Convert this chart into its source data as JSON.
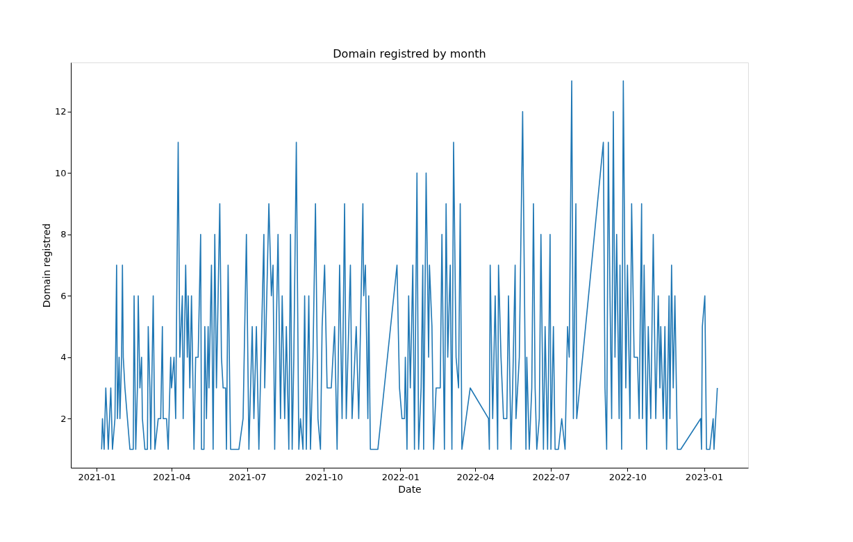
{
  "chart_data": {
    "type": "line",
    "title": "Domain registred by month",
    "xlabel": "Date",
    "ylabel": "Domain registred",
    "x": [
      "2021-01-07",
      "2021-01-08",
      "2021-01-10",
      "2021-01-12",
      "2021-01-15",
      "2021-01-18",
      "2021-01-20",
      "2021-01-23",
      "2021-01-25",
      "2021-01-26",
      "2021-01-28",
      "2021-01-29",
      "2021-01-31",
      "2021-02-01",
      "2021-02-02",
      "2021-02-04",
      "2021-02-10",
      "2021-02-14",
      "2021-02-15",
      "2021-02-17",
      "2021-02-19",
      "2021-02-20",
      "2021-02-22",
      "2021-02-24",
      "2021-02-25",
      "2021-02-28",
      "2021-03-03",
      "2021-03-04",
      "2021-03-06",
      "2021-03-07",
      "2021-03-10",
      "2021-03-12",
      "2021-03-16",
      "2021-03-19",
      "2021-03-21",
      "2021-03-22",
      "2021-03-26",
      "2021-03-28",
      "2021-03-31",
      "2021-04-01",
      "2021-04-04",
      "2021-04-06",
      "2021-04-09",
      "2021-04-11",
      "2021-04-14",
      "2021-04-15",
      "2021-04-18",
      "2021-04-20",
      "2021-04-21",
      "2021-04-23",
      "2021-04-25",
      "2021-04-28",
      "2021-04-30",
      "2021-05-03",
      "2021-05-06",
      "2021-05-07",
      "2021-05-10",
      "2021-05-11",
      "2021-05-13",
      "2021-05-15",
      "2021-05-16",
      "2021-05-19",
      "2021-05-21",
      "2021-05-23",
      "2021-05-25",
      "2021-05-27",
      "2021-05-29",
      "2021-05-31",
      "2021-06-02",
      "2021-06-05",
      "2021-06-06",
      "2021-06-08",
      "2021-06-11",
      "2021-06-15",
      "2021-06-21",
      "2021-06-26",
      "2021-06-30",
      "2021-07-03",
      "2021-07-07",
      "2021-07-09",
      "2021-07-12",
      "2021-07-15",
      "2021-07-21",
      "2021-07-22",
      "2021-07-27",
      "2021-07-30",
      "2021-08-01",
      "2021-08-03",
      "2021-08-05",
      "2021-08-07",
      "2021-08-10",
      "2021-08-12",
      "2021-08-15",
      "2021-08-17",
      "2021-08-20",
      "2021-08-22",
      "2021-08-24",
      "2021-08-26",
      "2021-08-29",
      "2021-09-01",
      "2021-09-03",
      "2021-09-06",
      "2021-09-08",
      "2021-09-10",
      "2021-09-13",
      "2021-09-15",
      "2021-09-18",
      "2021-09-21",
      "2021-09-24",
      "2021-09-27",
      "2021-09-29",
      "2021-10-02",
      "2021-10-05",
      "2021-10-10",
      "2021-10-14",
      "2021-10-17",
      "2021-10-20",
      "2021-10-23",
      "2021-10-26",
      "2021-10-28",
      "2021-11-02",
      "2021-11-04",
      "2021-11-09",
      "2021-11-12",
      "2021-11-17",
      "2021-11-18",
      "2021-11-20",
      "2021-11-23",
      "2021-11-24",
      "2021-11-26",
      "2021-12-01",
      "2021-12-05",
      "2021-12-28",
      "2021-12-31",
      "2022-01-03",
      "2022-01-06",
      "2022-01-07",
      "2022-01-09",
      "2022-01-11",
      "2022-01-13",
      "2022-01-16",
      "2022-01-18",
      "2022-01-21",
      "2022-01-23",
      "2022-01-26",
      "2022-01-28",
      "2022-01-29",
      "2022-02-01",
      "2022-02-04",
      "2022-02-05",
      "2022-02-08",
      "2022-02-10",
      "2022-02-13",
      "2022-02-18",
      "2022-02-20",
      "2022-02-23",
      "2022-02-25",
      "2022-02-27",
      "2022-03-02",
      "2022-03-04",
      "2022-03-06",
      "2022-03-09",
      "2022-03-12",
      "2022-03-14",
      "2022-03-16",
      "2022-03-26",
      "2022-04-17",
      "2022-04-18",
      "2022-04-19",
      "2022-04-22",
      "2022-04-25",
      "2022-04-28",
      "2022-04-29",
      "2022-05-02",
      "2022-05-05",
      "2022-05-09",
      "2022-05-11",
      "2022-05-14",
      "2022-05-16",
      "2022-05-19",
      "2022-05-20",
      "2022-05-24",
      "2022-05-28",
      "2022-05-31",
      "2022-06-01",
      "2022-06-02",
      "2022-06-05",
      "2022-06-08",
      "2022-06-10",
      "2022-06-12",
      "2022-06-14",
      "2022-06-17",
      "2022-06-19",
      "2022-06-22",
      "2022-06-24",
      "2022-06-27",
      "2022-06-30",
      "2022-07-01",
      "2022-07-04",
      "2022-07-06",
      "2022-07-10",
      "2022-07-14",
      "2022-07-18",
      "2022-07-21",
      "2022-07-23",
      "2022-07-26",
      "2022-07-28",
      "2022-07-31",
      "2022-08-01",
      "2022-09-02",
      "2022-09-04",
      "2022-09-06",
      "2022-09-08",
      "2022-09-10",
      "2022-09-12",
      "2022-09-14",
      "2022-09-16",
      "2022-09-18",
      "2022-09-21",
      "2022-09-22",
      "2022-09-24",
      "2022-09-26",
      "2022-09-29",
      "2022-10-01",
      "2022-10-04",
      "2022-10-06",
      "2022-10-09",
      "2022-10-13",
      "2022-10-15",
      "2022-10-18",
      "2022-10-19",
      "2022-10-21",
      "2022-10-24",
      "2022-10-26",
      "2022-10-29",
      "2022-11-01",
      "2022-11-04",
      "2022-11-07",
      "2022-11-09",
      "2022-11-10",
      "2022-11-13",
      "2022-11-15",
      "2022-11-17",
      "2022-11-20",
      "2022-11-21",
      "2022-11-23",
      "2022-11-25",
      "2022-11-27",
      "2022-11-30",
      "2022-12-04",
      "2022-12-28",
      "2022-12-29",
      "2022-12-30",
      "2023-01-02",
      "2023-01-04",
      "2023-01-08",
      "2023-01-12",
      "2023-01-13",
      "2023-01-17"
    ],
    "series": [
      {
        "color": "#1f77b4",
        "values": [
          1,
          2,
          1,
          3,
          1,
          3,
          1,
          2,
          7,
          2,
          4,
          2,
          4,
          7,
          4,
          3,
          1,
          1,
          6,
          1,
          3,
          6,
          3,
          4,
          2,
          1,
          1,
          5,
          3,
          1,
          6,
          1,
          2,
          2,
          5,
          2,
          2,
          1,
          4,
          3,
          4,
          2,
          11,
          4,
          6,
          2,
          7,
          4,
          6,
          3,
          6,
          1,
          4,
          4,
          8,
          1,
          1,
          5,
          2,
          5,
          3,
          7,
          1,
          8,
          3,
          6,
          9,
          4,
          3,
          3,
          1,
          7,
          1,
          1,
          1,
          2,
          8,
          1,
          5,
          2,
          5,
          1,
          8,
          3,
          9,
          6,
          7,
          1,
          5,
          8,
          2,
          6,
          2,
          5,
          1,
          8,
          1,
          4,
          11,
          1,
          2,
          1,
          6,
          1,
          6,
          1,
          4,
          9,
          2,
          1,
          5,
          7,
          3,
          3,
          5,
          1,
          7,
          2,
          9,
          2,
          7,
          2,
          5,
          2,
          9,
          6,
          7,
          2,
          6,
          1,
          1,
          1,
          7,
          3,
          2,
          2,
          4,
          1,
          6,
          3,
          7,
          1,
          10,
          1,
          3,
          7,
          1,
          10,
          4,
          7,
          5,
          1,
          3,
          3,
          8,
          1,
          9,
          4,
          7,
          1,
          11,
          4,
          3,
          9,
          1,
          3,
          2,
          1,
          7,
          2,
          6,
          1,
          7,
          4,
          2,
          2,
          6,
          1,
          3,
          7,
          2,
          4,
          12,
          4,
          1,
          4,
          1,
          3,
          9,
          3,
          1,
          2,
          8,
          1,
          5,
          1,
          8,
          1,
          5,
          1,
          1,
          2,
          1,
          5,
          4,
          13,
          2,
          9,
          2,
          11,
          3,
          1,
          11,
          6,
          2,
          12,
          4,
          8,
          2,
          7,
          1,
          13,
          3,
          7,
          2,
          9,
          4,
          4,
          2,
          9,
          2,
          7,
          1,
          5,
          2,
          8,
          2,
          6,
          3,
          5,
          2,
          5,
          1,
          6,
          2,
          7,
          3,
          6,
          1,
          1,
          2,
          1,
          5,
          6,
          1,
          1,
          2,
          1,
          3
        ]
      }
    ],
    "xlim": [
      "2020-12-01",
      "2023-02-23"
    ],
    "xticks": [
      {
        "value": "2021-01-01",
        "label": "2021-01"
      },
      {
        "value": "2021-04-01",
        "label": "2021-04"
      },
      {
        "value": "2021-07-01",
        "label": "2021-07"
      },
      {
        "value": "2021-10-01",
        "label": "2021-10"
      },
      {
        "value": "2022-01-01",
        "label": "2022-01"
      },
      {
        "value": "2022-04-01",
        "label": "2022-04"
      },
      {
        "value": "2022-07-01",
        "label": "2022-07"
      },
      {
        "value": "2022-10-01",
        "label": "2022-10"
      },
      {
        "value": "2023-01-01",
        "label": "2023-01"
      }
    ],
    "ylim": [
      0.4,
      13.6
    ],
    "yticks": [
      2,
      4,
      6,
      8,
      10,
      12
    ],
    "grid": false,
    "marker": "none",
    "line_style": "solid"
  }
}
